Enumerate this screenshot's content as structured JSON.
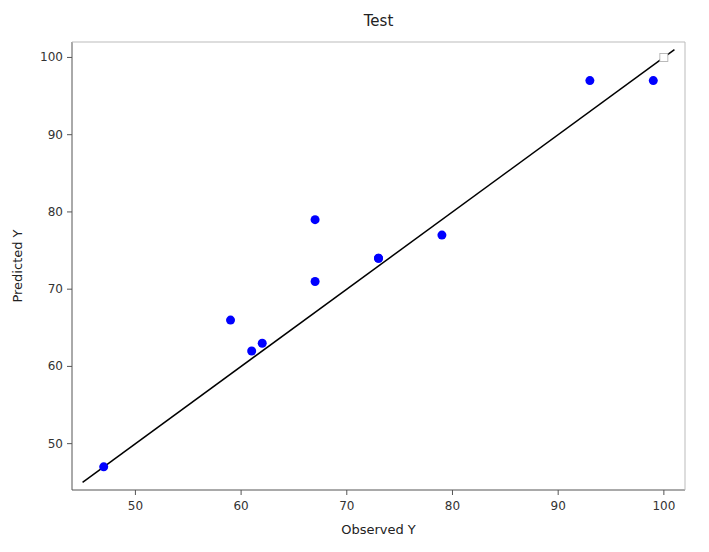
{
  "chart_data": {
    "type": "scatter",
    "title": "Test",
    "xlabel": "Observed Y",
    "ylabel": "Predicted Y",
    "xlim": [
      44,
      102
    ],
    "ylim": [
      44,
      102
    ],
    "xticks": [
      50,
      60,
      70,
      80,
      90,
      100
    ],
    "yticks": [
      50,
      60,
      70,
      80,
      90,
      100
    ],
    "grid": false,
    "series": [
      {
        "type": "line",
        "color": "black",
        "x": [
          45,
          101
        ],
        "values": [
          45,
          101
        ]
      },
      {
        "type": "scatter",
        "marker": "circle",
        "color": "#0000ff",
        "x": [
          47,
          59,
          61,
          62,
          67,
          67,
          73,
          73,
          79,
          93,
          99
        ],
        "values": [
          47,
          66,
          62,
          63,
          71,
          79,
          74,
          74,
          77,
          97,
          97
        ]
      },
      {
        "type": "scatter",
        "marker": "square",
        "color": "white",
        "x": [
          100
        ],
        "values": [
          100
        ]
      }
    ]
  }
}
